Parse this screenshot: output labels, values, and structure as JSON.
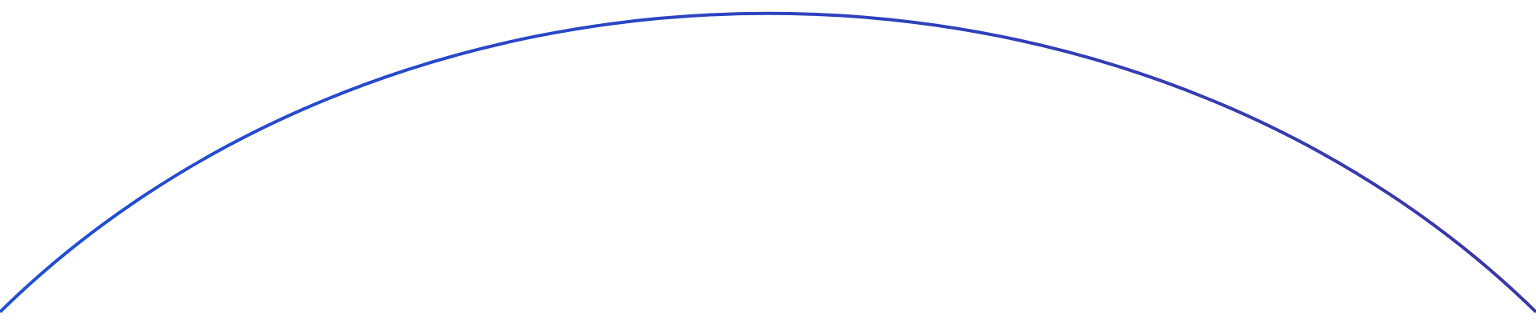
{
  "colors": {
    "background": "#ffffff",
    "arc_start": "#1f4fd6",
    "arc_end": "#3b36a8"
  }
}
